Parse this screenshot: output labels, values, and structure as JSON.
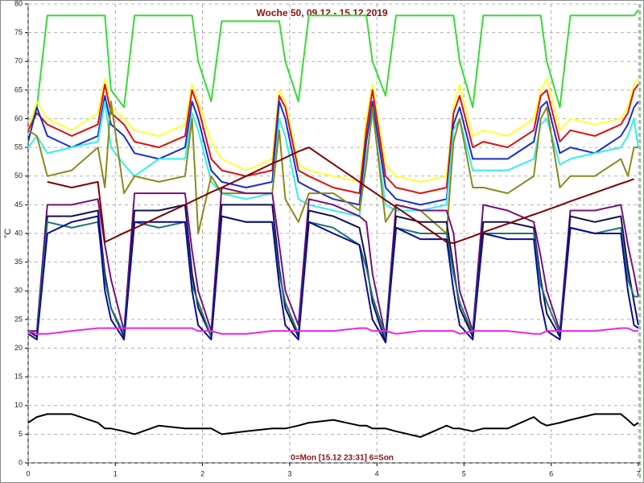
{
  "chart_data": {
    "type": "line",
    "title": "Woche 50, 09.12 - 15.12.2019",
    "annotation": "0=Mon [15.12 23:31] 6=Son",
    "y_label": "°C",
    "xlim": [
      0,
      7
    ],
    "xticks": [
      0,
      1,
      2,
      3,
      4,
      5,
      6,
      7
    ],
    "ylim": [
      0,
      80
    ],
    "yticks": [
      0,
      5,
      10,
      15,
      20,
      25,
      30,
      35,
      40,
      45,
      50,
      55,
      60,
      65,
      70,
      75,
      80
    ],
    "grid": true,
    "x": [
      0,
      0.1,
      0.22,
      0.5,
      0.8,
      0.88,
      0.95,
      1.1,
      1.22,
      1.5,
      1.8,
      1.88,
      1.95,
      2.1,
      2.22,
      2.5,
      2.8,
      2.88,
      2.95,
      3.1,
      3.22,
      3.5,
      3.8,
      3.88,
      3.95,
      4.1,
      4.22,
      4.5,
      4.8,
      4.88,
      4.95,
      5.1,
      5.22,
      5.5,
      5.8,
      5.88,
      5.95,
      6.1,
      6.22,
      6.5,
      6.8,
      6.88,
      6.95,
      7
    ],
    "series": [
      {
        "color": "#33dd33",
        "values": [
          58,
          62,
          78,
          78,
          78,
          78,
          65,
          62,
          78,
          78,
          78,
          78,
          70,
          63,
          77,
          77,
          77,
          77,
          70,
          63,
          78,
          78,
          78,
          78,
          70,
          64,
          78,
          78,
          78,
          78,
          70,
          62,
          78,
          78,
          78,
          78,
          70,
          62,
          78,
          78,
          78,
          78,
          78,
          79
        ]
      },
      {
        "color": "#ffff33",
        "values": [
          58,
          63,
          60,
          58,
          61,
          67,
          62,
          60,
          58,
          57,
          59,
          66,
          63,
          56,
          53,
          51,
          53,
          65,
          63,
          52,
          51,
          50,
          49,
          60,
          66,
          52,
          50,
          49,
          50,
          62,
          66,
          57,
          58,
          57,
          60,
          65,
          67,
          58,
          60,
          59,
          60,
          62,
          66,
          67
        ]
      },
      {
        "color": "#dd1111",
        "values": [
          58,
          61,
          59,
          57,
          59,
          66,
          61,
          59,
          56,
          55,
          57,
          65,
          62,
          53,
          51,
          50,
          51,
          64,
          62,
          51,
          50,
          48,
          47,
          58,
          65,
          50,
          48,
          47,
          48,
          61,
          64,
          55,
          56,
          55,
          58,
          64,
          65,
          56,
          58,
          57,
          59,
          61,
          65,
          66
        ]
      },
      {
        "color": "#1a2ecc",
        "values": [
          56,
          62,
          57,
          55,
          57,
          64,
          59,
          57,
          54,
          53,
          55,
          63,
          60,
          51,
          49,
          48,
          49,
          63,
          60,
          49,
          48,
          46,
          45,
          56,
          63,
          48,
          46,
          45,
          46,
          59,
          62,
          53,
          53,
          53,
          56,
          62,
          63,
          54,
          55,
          54,
          57,
          59,
          62,
          63
        ]
      },
      {
        "color": "#33eeee",
        "values": [
          55,
          57,
          54,
          55,
          56,
          63,
          55,
          52,
          50,
          53,
          53,
          61,
          58,
          49,
          47,
          46,
          47,
          60,
          57,
          46,
          45,
          44,
          43,
          53,
          61,
          45,
          44,
          44,
          45,
          58,
          60,
          51,
          51,
          51,
          53,
          59,
          60,
          52,
          53,
          54,
          55,
          57,
          60,
          55
        ]
      },
      {
        "color": "#8a8a1a",
        "values": [
          58,
          57,
          50,
          51,
          55,
          48,
          63,
          47,
          50,
          49,
          50,
          60,
          40,
          50,
          47,
          47,
          47,
          58,
          46,
          42,
          47,
          47,
          44,
          52,
          62,
          42,
          45,
          44,
          40,
          56,
          60,
          48,
          48,
          47,
          50,
          60,
          62,
          48,
          50,
          50,
          53,
          50,
          55,
          55
        ]
      },
      {
        "color": "#771177",
        "values": [
          23,
          23,
          45,
          45,
          46,
          38,
          32,
          23,
          47,
          47,
          47,
          37,
          30,
          23,
          48,
          47,
          47,
          38,
          30,
          24,
          46,
          45,
          43,
          42,
          33,
          22,
          45,
          44,
          44,
          40,
          30,
          23,
          45,
          44,
          42,
          36,
          30,
          23,
          44,
          44,
          45,
          38,
          33,
          29
        ]
      },
      {
        "color": "#111155",
        "values": [
          23,
          22,
          43,
          43,
          44,
          33,
          27,
          22,
          44,
          44,
          45,
          33,
          27,
          22,
          45,
          45,
          45,
          34,
          27,
          22,
          44,
          43,
          41,
          35,
          28,
          21,
          43,
          42,
          42,
          34,
          27,
          22,
          42,
          42,
          41,
          32,
          26,
          22,
          43,
          42,
          43,
          34,
          28,
          24
        ]
      },
      {
        "color": "#1f7373",
        "values": [
          23,
          22.5,
          42,
          41,
          42,
          32,
          27,
          22.5,
          42,
          41,
          42,
          31,
          28,
          22,
          43,
          42,
          42,
          33,
          28,
          22.5,
          42,
          41,
          38,
          34,
          29,
          22,
          41,
          40,
          40,
          33,
          28,
          22.5,
          40,
          40,
          40,
          31,
          28,
          22.5,
          41,
          40,
          41,
          32,
          29,
          29
        ]
      },
      {
        "color": "#0a0a99",
        "values": [
          22.5,
          21.5,
          40,
          42,
          43,
          30,
          25,
          21.5,
          42,
          42,
          42,
          30,
          24,
          21.5,
          43,
          42,
          42,
          31,
          24,
          21.5,
          42,
          40,
          38,
          31,
          25,
          21,
          41,
          39,
          39,
          30,
          24,
          21.5,
          40,
          39,
          39,
          28,
          23,
          21.5,
          41,
          40,
          40,
          30,
          24,
          23.5
        ]
      },
      {
        "color": "#ee22ee",
        "values": [
          23,
          22.5,
          22.5,
          23,
          23.5,
          23.5,
          23.5,
          23.5,
          23.5,
          23.5,
          23.5,
          23.5,
          23,
          23,
          22.5,
          22.5,
          23,
          23,
          23,
          23,
          23,
          23,
          23.5,
          23.5,
          23,
          23,
          22.5,
          23,
          23,
          23,
          22.5,
          23,
          23,
          23,
          22.5,
          22.5,
          23,
          23,
          23,
          23,
          23.5,
          23.5,
          23,
          23
        ]
      },
      {
        "color": "#800000",
        "values": [
          null,
          null,
          49,
          48,
          49,
          38.5,
          39,
          40.1,
          40.9,
          42.9,
          45,
          45.6,
          46.1,
          47.2,
          48,
          50,
          52.2,
          52.7,
          53.2,
          54.3,
          55,
          52.1,
          49,
          48.1,
          47.4,
          45.8,
          44.6,
          41.7,
          38.5,
          38.3,
          38.7,
          39.5,
          40.2,
          41.7,
          43.3,
          43.7,
          44.1,
          44.9,
          45.6,
          47.1,
          48.7,
          49.1,
          49.5,
          null
        ]
      },
      {
        "color": "#000000",
        "values": [
          7,
          8,
          8.5,
          8.5,
          7,
          6,
          6,
          5.5,
          5,
          6.5,
          6,
          6,
          6,
          6,
          5,
          5.5,
          6,
          6,
          6,
          6.5,
          7,
          7.5,
          6.5,
          6.5,
          6,
          6,
          5.5,
          4.5,
          6.5,
          6,
          6,
          5.5,
          6,
          6,
          8,
          7,
          6.5,
          7,
          7.5,
          8.5,
          8.5,
          7.5,
          6.5,
          7
        ]
      }
    ]
  }
}
